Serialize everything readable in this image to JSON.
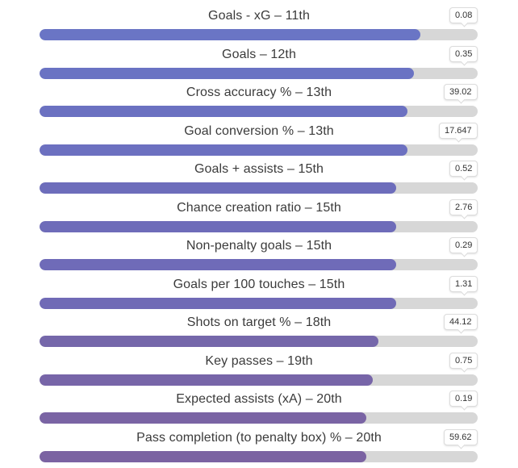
{
  "stats": [
    {
      "label": "Goals - xG – 11th",
      "value": "0.08",
      "fill_fraction": 0.869,
      "color": "#6a75c5"
    },
    {
      "label": "Goals – 12th",
      "value": "0.35",
      "fill_fraction": 0.855,
      "color": "#6a73c3"
    },
    {
      "label": "Cross accuracy % – 13th",
      "value": "39.02",
      "fill_fraction": 0.84,
      "color": "#6b71c1"
    },
    {
      "label": "Goal conversion % – 13th",
      "value": "17.647",
      "fill_fraction": 0.84,
      "color": "#6c70c0"
    },
    {
      "label": "Goals + assists – 15th",
      "value": "0.52",
      "fill_fraction": 0.814,
      "color": "#6d6dbb"
    },
    {
      "label": "Chance creation ratio – 15th",
      "value": "2.76",
      "fill_fraction": 0.814,
      "color": "#6e6cb9"
    },
    {
      "label": "Non-penalty goals – 15th",
      "value": "0.29",
      "fill_fraction": 0.814,
      "color": "#6f6bb8"
    },
    {
      "label": "Goals per 100 touches – 15th",
      "value": "1.31",
      "fill_fraction": 0.814,
      "color": "#706ab6"
    },
    {
      "label": "Shots on target % – 18th",
      "value": "44.12",
      "fill_fraction": 0.774,
      "color": "#7567aa"
    },
    {
      "label": "Key passes – 19th",
      "value": "0.75",
      "fill_fraction": 0.76,
      "color": "#7765a8"
    },
    {
      "label": "Expected assists (xA) – 20th",
      "value": "0.19",
      "fill_fraction": 0.746,
      "color": "#7a64a4"
    },
    {
      "label": "Pass completion (to penalty box) % – 20th",
      "value": "59.62",
      "fill_fraction": 0.746,
      "color": "#7b63a2"
    }
  ]
}
